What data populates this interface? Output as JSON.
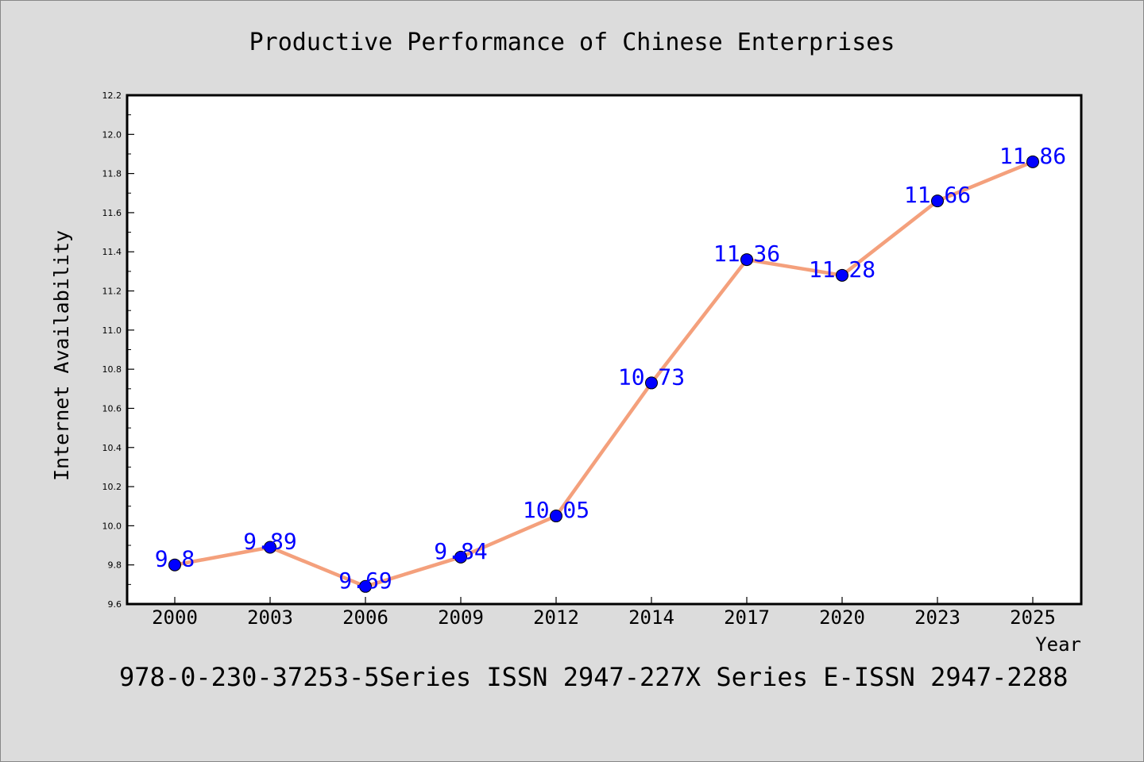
{
  "chart_data": {
    "type": "line",
    "title": "Productive Performance of Chinese Enterprises",
    "xlabel": "Year",
    "ylabel": "Internet Availability",
    "categories": [
      "2000",
      "2003",
      "2006",
      "2009",
      "2012",
      "2014",
      "2017",
      "2020",
      "2023",
      "2025"
    ],
    "values": [
      9.8,
      9.89,
      9.69,
      9.84,
      10.05,
      10.73,
      11.36,
      11.28,
      11.66,
      11.86
    ],
    "value_labels": [
      "9.8",
      "9.89",
      "9.69",
      "9.84",
      "10.05",
      "10.73",
      "11.36",
      "11.28",
      "11.66",
      "11.86"
    ],
    "ylim": [
      9.6,
      12.2
    ],
    "yticks": [
      "9.6",
      "9.8",
      "10.0",
      "10.2",
      "10.4",
      "10.6",
      "10.8",
      "11.0",
      "11.2",
      "11.4",
      "11.6",
      "11.8",
      "12.0",
      "12.2"
    ],
    "grid": false,
    "line_color": "#f4a07c",
    "marker_color": "#0000ff",
    "label_color": "#0000ff"
  },
  "footer": "978-0-230-37253-5Series ISSN 2947-227X Series E-ISSN 2947-2288"
}
